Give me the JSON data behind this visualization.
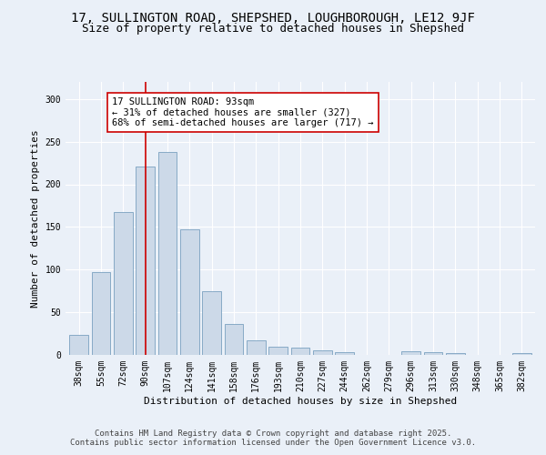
{
  "title_line1": "17, SULLINGTON ROAD, SHEPSHED, LOUGHBOROUGH, LE12 9JF",
  "title_line2": "Size of property relative to detached houses in Shepshed",
  "xlabel": "Distribution of detached houses by size in Shepshed",
  "ylabel": "Number of detached properties",
  "categories": [
    "38sqm",
    "55sqm",
    "72sqm",
    "90sqm",
    "107sqm",
    "124sqm",
    "141sqm",
    "158sqm",
    "176sqm",
    "193sqm",
    "210sqm",
    "227sqm",
    "244sqm",
    "262sqm",
    "279sqm",
    "296sqm",
    "313sqm",
    "330sqm",
    "348sqm",
    "365sqm",
    "382sqm"
  ],
  "values": [
    24,
    97,
    168,
    221,
    238,
    147,
    75,
    36,
    17,
    10,
    9,
    5,
    3,
    0,
    0,
    4,
    3,
    2,
    0,
    0,
    2
  ],
  "bar_color": "#ccd9e8",
  "bar_edge_color": "#7aa0c0",
  "vline_x_index": 3,
  "vline_color": "#cc0000",
  "annotation_text": "17 SULLINGTON ROAD: 93sqm\n← 31% of detached houses are smaller (327)\n68% of semi-detached houses are larger (717) →",
  "annotation_box_color": "#ffffff",
  "annotation_box_edge_color": "#cc0000",
  "ylim": [
    0,
    320
  ],
  "yticks": [
    0,
    50,
    100,
    150,
    200,
    250,
    300
  ],
  "background_color": "#eaf0f8",
  "grid_color": "#ffffff",
  "footer_line1": "Contains HM Land Registry data © Crown copyright and database right 2025.",
  "footer_line2": "Contains public sector information licensed under the Open Government Licence v3.0.",
  "title_fontsize": 10,
  "subtitle_fontsize": 9,
  "label_fontsize": 8,
  "tick_fontsize": 7,
  "annotation_fontsize": 7.5,
  "footer_fontsize": 6.5
}
